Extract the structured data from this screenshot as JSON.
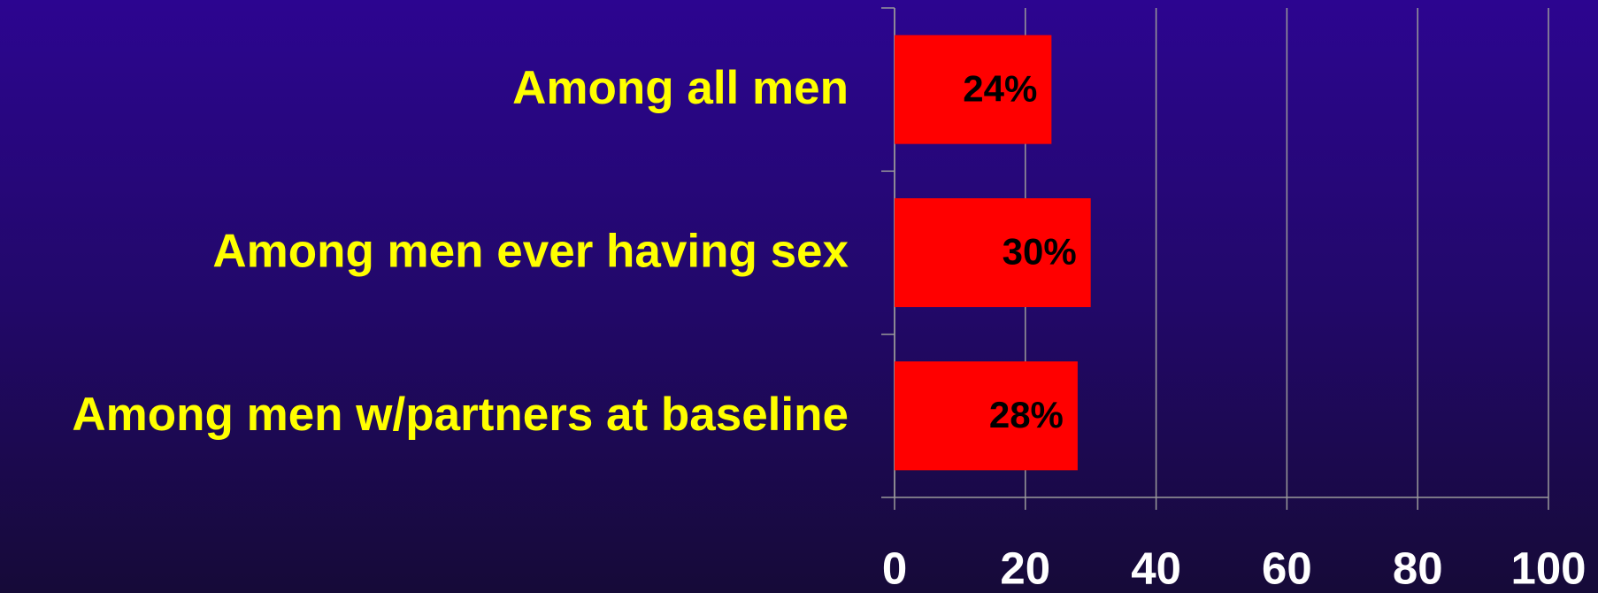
{
  "chart_data": {
    "type": "bar",
    "orientation": "horizontal",
    "categories": [
      "Among all men",
      "Among men ever having sex",
      "Among men w/partners at baseline"
    ],
    "values": [
      24,
      30,
      28
    ],
    "value_labels": [
      "24%",
      "30%",
      "28%"
    ],
    "color": "#ff0000",
    "xlim": [
      0,
      100
    ],
    "xticks": [
      0,
      20,
      40,
      60,
      80,
      100
    ],
    "grid": true
  }
}
